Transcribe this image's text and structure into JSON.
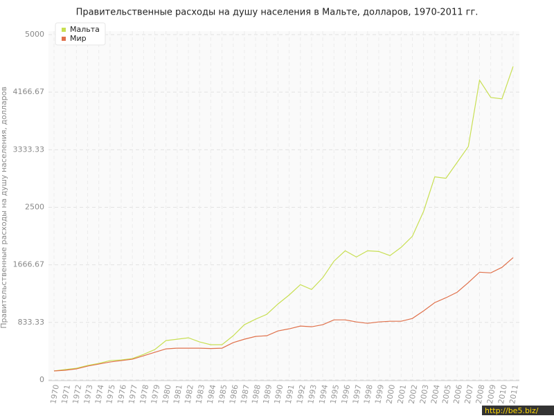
{
  "chart_data": {
    "type": "line",
    "title": "Правительственные расходы на душу населения в Мальте, долларов, 1970-2011 гг.",
    "y_label": "Правительственные расходы на душу населения, долларов",
    "watermark": "http://be5.biz/",
    "x": [
      1970,
      1971,
      1972,
      1973,
      1974,
      1975,
      1976,
      1977,
      1978,
      1979,
      1980,
      1981,
      1982,
      1983,
      1984,
      1985,
      1986,
      1987,
      1988,
      1989,
      1990,
      1991,
      1992,
      1993,
      1994,
      1995,
      1996,
      1997,
      1998,
      1999,
      2000,
      2001,
      2002,
      2003,
      2004,
      2005,
      2006,
      2007,
      2008,
      2009,
      2010,
      2011
    ],
    "xlim": [
      1970,
      2011
    ],
    "ylim": [
      0,
      5000
    ],
    "yticks": [
      0,
      833.33,
      1666.67,
      2500,
      3333.33,
      4166.67,
      5000
    ],
    "grid": true,
    "legend": "top-left",
    "series": [
      {
        "name": "Мальта",
        "color": "#c8df52",
        "values": [
          130,
          150,
          170,
          210,
          240,
          280,
          290,
          310,
          370,
          440,
          570,
          590,
          610,
          550,
          510,
          510,
          640,
          800,
          880,
          950,
          1100,
          1230,
          1380,
          1310,
          1480,
          1720,
          1870,
          1780,
          1870,
          1860,
          1800,
          1920,
          2080,
          2440,
          2940,
          2920,
          3150,
          3380,
          4340,
          4090,
          4070,
          4540
        ]
      },
      {
        "name": "Мир",
        "color": "#e0704a",
        "values": [
          130,
          140,
          160,
          200,
          230,
          260,
          280,
          300,
          350,
          400,
          450,
          460,
          460,
          460,
          455,
          460,
          540,
          590,
          630,
          640,
          710,
          740,
          780,
          770,
          800,
          870,
          870,
          840,
          820,
          840,
          850,
          850,
          890,
          1000,
          1120,
          1190,
          1270,
          1410,
          1560,
          1550,
          1630,
          1770
        ]
      }
    ]
  }
}
